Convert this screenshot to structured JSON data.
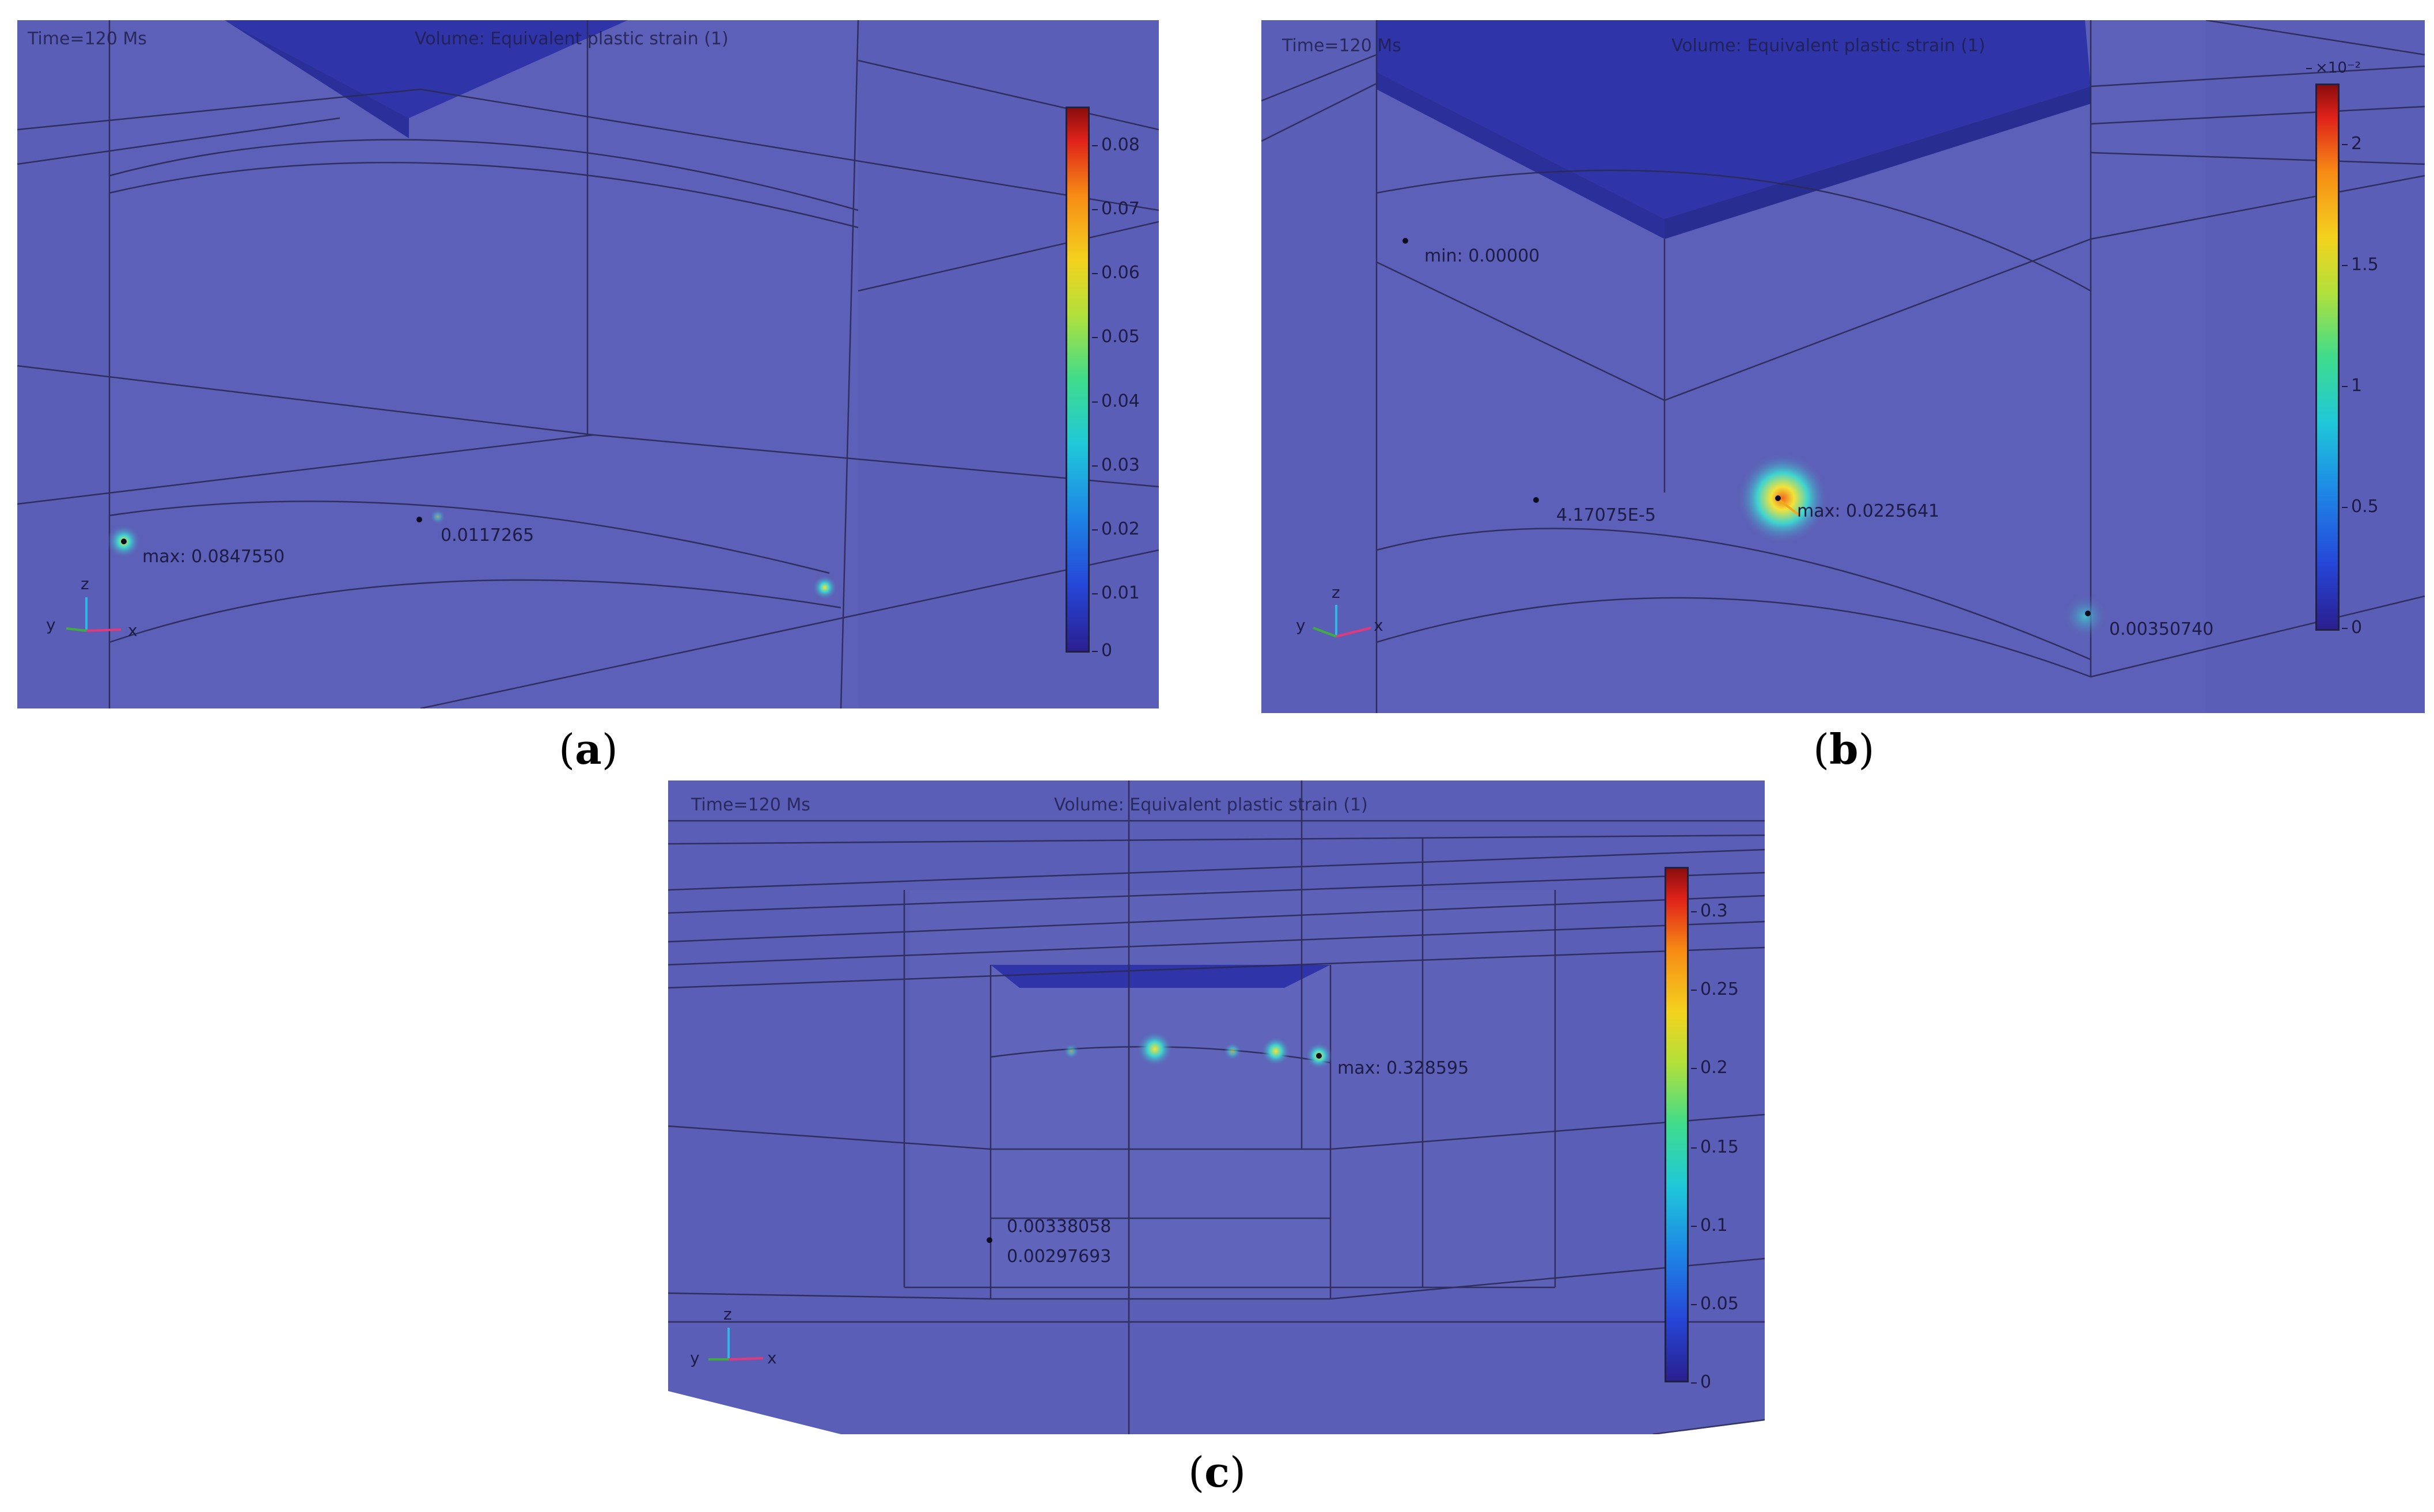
{
  "panels": [
    {
      "time": "Time=120 Ms",
      "title": "Volume: Equivalent plastic strain (1)",
      "colorbar_ticks": [
        "0.08",
        "0.07",
        "0.06",
        "0.05",
        "0.04",
        "0.03",
        "0.02",
        "0.01",
        "0"
      ],
      "colorbar_multiplier": "",
      "point_labels": [
        "max: 0.0847550",
        "0.0117265"
      ],
      "axes": {
        "z": "z",
        "y": "y",
        "x": "x"
      },
      "caption": "a"
    },
    {
      "time": "Time=120 Ms",
      "title": "Volume: Equivalent plastic strain (1)",
      "colorbar_ticks": [
        "2",
        "1.5",
        "1",
        "0.5",
        "0"
      ],
      "colorbar_multiplier": "×10⁻²",
      "point_labels": [
        "min: 0.00000",
        "4.17075E-5",
        "max: 0.0225641",
        "0.00350740"
      ],
      "axes": {
        "z": "z",
        "y": "y",
        "x": "x"
      },
      "caption": "b"
    },
    {
      "time": "Time=120 Ms",
      "title": "Volume: Equivalent plastic strain (1)",
      "colorbar_ticks": [
        "0.3",
        "0.25",
        "0.2",
        "0.15",
        "0.1",
        "0.05",
        "0"
      ],
      "colorbar_multiplier": "",
      "point_labels": [
        "max: 0.328595",
        "0.00338058",
        "0.00297693"
      ],
      "axes": {
        "z": "z",
        "y": "y",
        "x": "x"
      },
      "caption": "c"
    }
  ],
  "caption_brackets": {
    "open": "(",
    "close": ")"
  },
  "colors": {
    "background": "#5a5db6",
    "block": "#2f34a8",
    "mesh_lines": "#2a2a55",
    "hotspot": "#f7d23c"
  }
}
